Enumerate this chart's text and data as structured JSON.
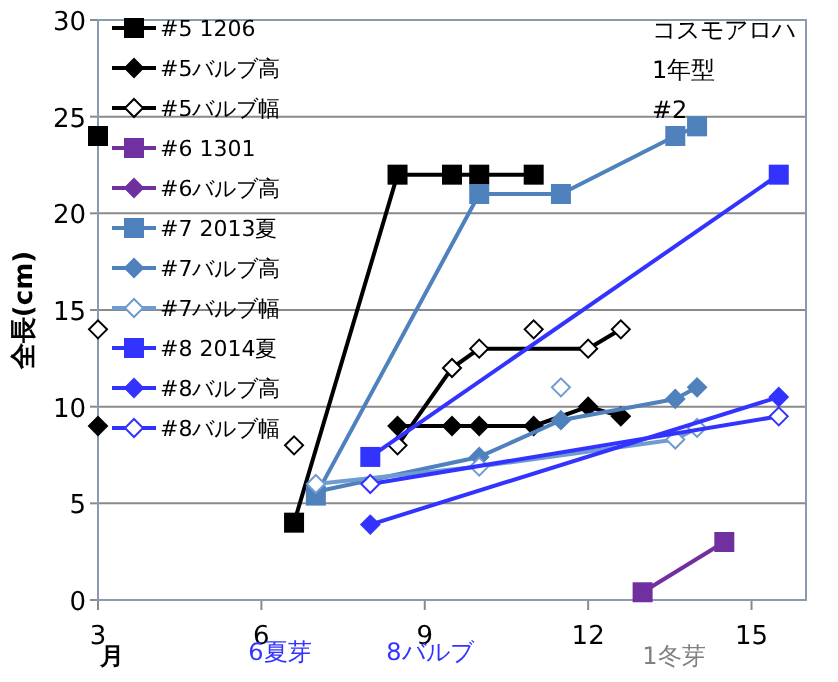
{
  "chart_data": {
    "type": "line",
    "ylabel": "全長(cm)",
    "xlim": [
      3,
      16
    ],
    "ylim": [
      0,
      30
    ],
    "xticks": [
      3,
      6,
      9,
      12,
      15
    ],
    "yticks": [
      0,
      5,
      10,
      15,
      20,
      25,
      30
    ],
    "grid": "y",
    "legend": "top left",
    "line_style": "solid",
    "annotations": [
      "コスモアロハ\n1年型\n#2",
      "月",
      "6夏芽",
      "8バルブ",
      "1冬芽"
    ],
    "series": [
      {
        "name": "#5 1206",
        "color": "#000000",
        "marker": "square",
        "x": [
          6.6,
          8.5,
          9.5,
          10,
          11
        ],
        "values": [
          4,
          22,
          22,
          22,
          22
        ]
      },
      {
        "name": "#5バルブ高",
        "color": "#000000",
        "marker": "diamond",
        "x": [
          8.5,
          9.5,
          10,
          11,
          12,
          12.6
        ],
        "values": [
          9,
          9,
          9,
          9,
          10,
          9.5
        ]
      },
      {
        "name": "#5バルブ幅",
        "color": "#000000",
        "marker": "diamond",
        "x": [
          8.5,
          9.5,
          10,
          12,
          12.6
        ],
        "values": [
          8,
          12,
          13,
          13,
          14
        ]
      },
      {
        "name": "#6 1301",
        "color": "#7030a0",
        "marker": "square",
        "x": [
          13,
          14.5
        ],
        "values": [
          0.4,
          3
        ]
      },
      {
        "name": "#6バルブ高",
        "color": "#7030a0",
        "marker": "diamond"
      },
      {
        "name": "#7 2013夏",
        "color": "#4f81bd",
        "marker": "square",
        "x": [
          7,
          10,
          11.5,
          13.6,
          14
        ],
        "values": [
          5.4,
          21,
          21,
          24,
          24.5
        ]
      },
      {
        "name": "#7バルブ高",
        "color": "#4f81bd",
        "marker": "diamond",
        "x": [
          7,
          10,
          11.5,
          13.6,
          14
        ],
        "values": [
          5.6,
          7.4,
          9.3,
          10.4,
          11
        ]
      },
      {
        "name": "#7バルブ幅",
        "color": "#6f9bd1",
        "marker": "diamond",
        "x": [
          7,
          10,
          13.6,
          14
        ],
        "values": [
          6,
          6.9,
          8.3,
          8.9
        ]
      },
      {
        "name": "#8 2014夏",
        "color": "#3333ff",
        "marker": "square",
        "x": [
          8,
          15.5
        ],
        "values": [
          7.4,
          22
        ]
      },
      {
        "name": "#8バルブ高",
        "color": "#3333ff",
        "marker": "diamond",
        "x": [
          8,
          15.5
        ],
        "values": [
          3.9,
          10.5
        ]
      },
      {
        "name": "#8バルブ幅",
        "color": "#3333ff",
        "marker": "diamond",
        "x": [
          8,
          15.5
        ],
        "values": [
          6,
          9.5
        ]
      },
      {
        "type": "scatter",
        "color": "#000000",
        "marker": "square",
        "x": [
          3
        ],
        "values": [
          24
        ]
      },
      {
        "type": "scatter",
        "color": "#000000",
        "marker": "diamond",
        "x": [
          3
        ],
        "values": [
          9
        ]
      },
      {
        "type": "scatter",
        "color": "#000000",
        "marker": "diamond",
        "x": [
          3,
          6.6,
          11
        ],
        "values": [
          14,
          8,
          14
        ]
      },
      {
        "type": "scatter",
        "color": "#6f9bd1",
        "marker": "diamond",
        "x": [
          11.5
        ],
        "values": [
          11
        ]
      }
    ]
  }
}
